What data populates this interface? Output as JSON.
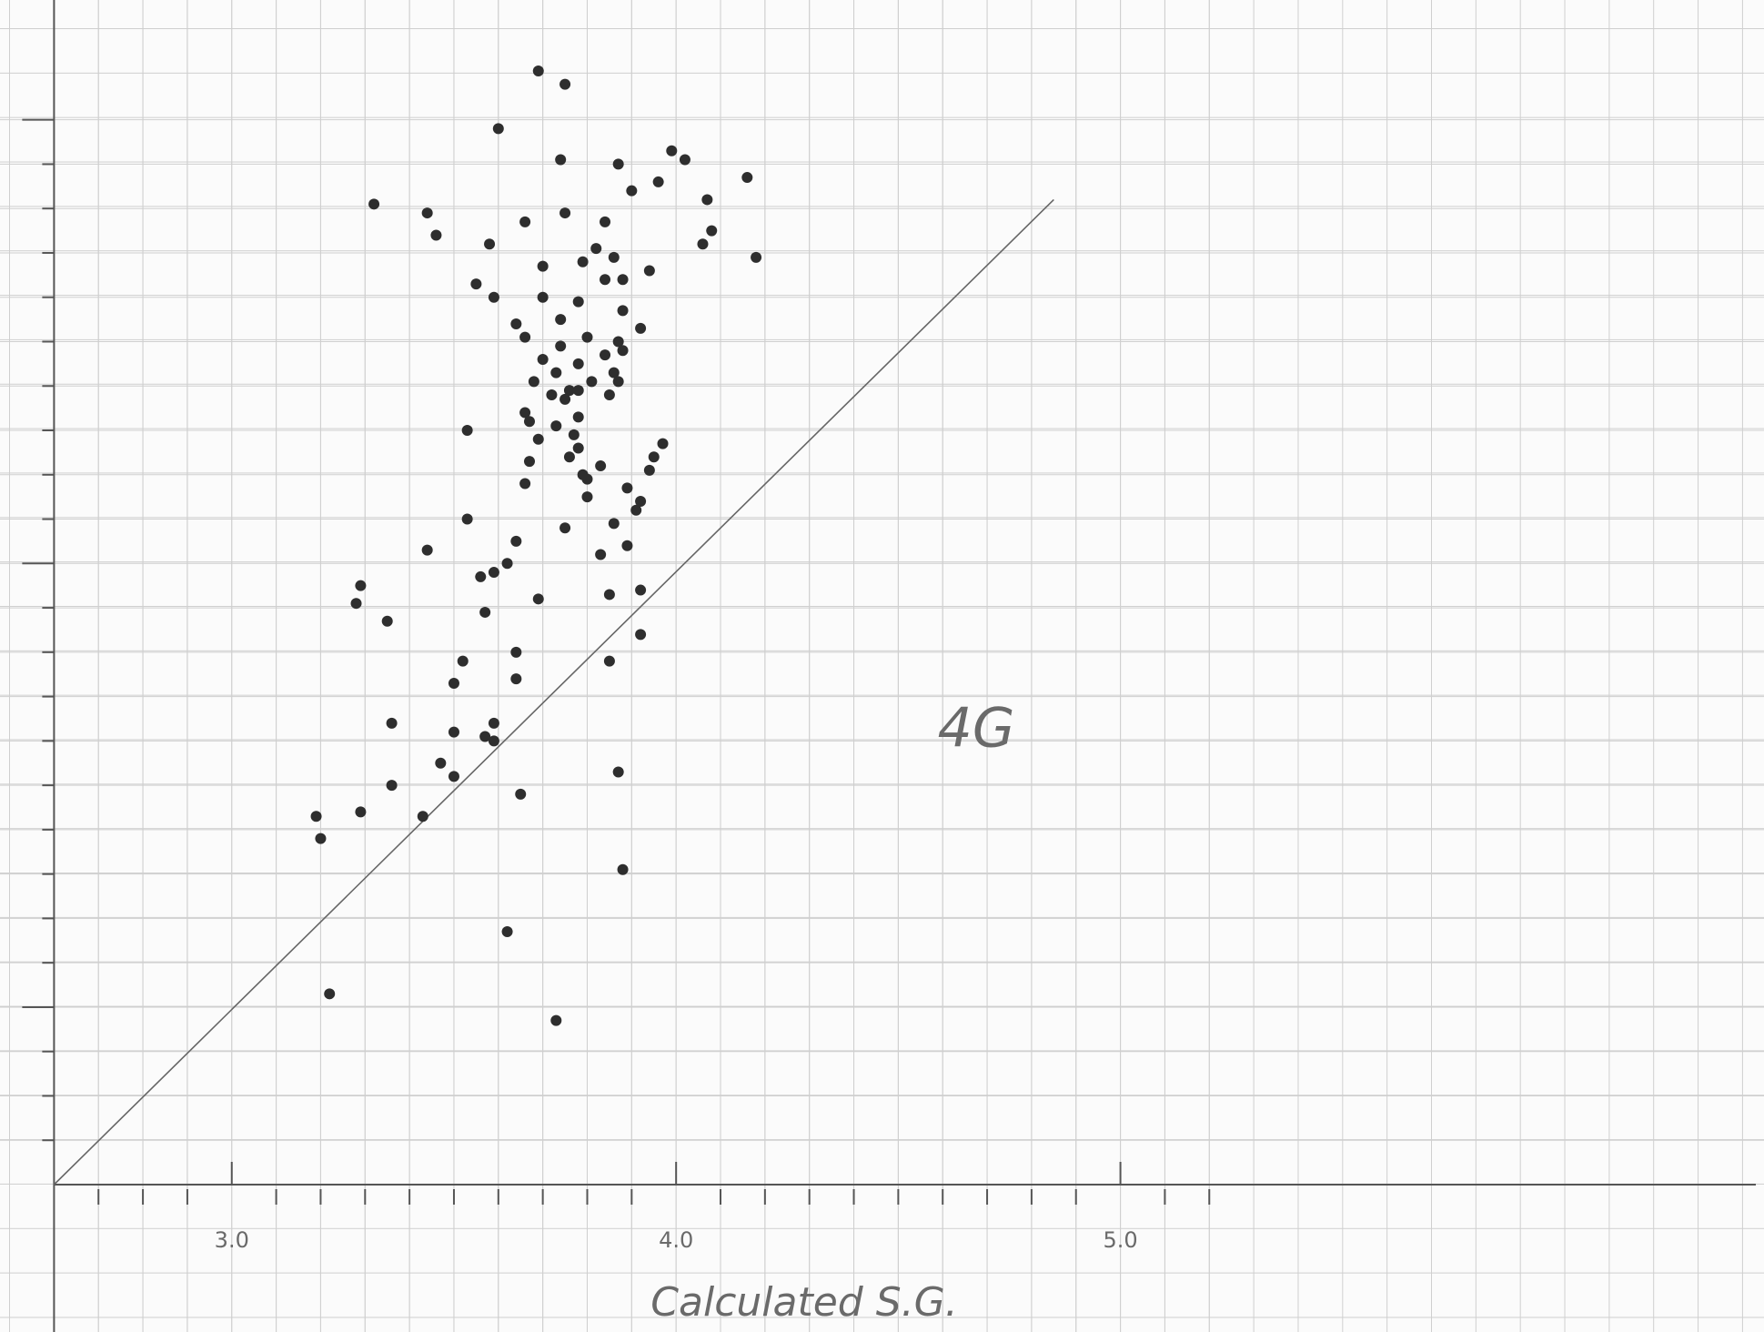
{
  "chart_data": {
    "type": "scatter",
    "x_label": "Calculated S.G.",
    "annotation": "4G",
    "x": [
      3.69,
      3.75,
      3.6,
      3.74,
      3.99,
      4.02,
      3.87,
      3.96,
      4.16,
      3.9,
      3.32,
      3.44,
      4.07,
      3.75,
      3.66,
      3.84,
      3.46,
      4.08,
      4.06,
      3.58,
      4.18,
      3.82,
      3.86,
      3.7,
      3.79,
      3.94,
      3.55,
      3.84,
      3.88,
      3.59,
      3.7,
      3.78,
      3.88,
      3.64,
      3.92,
      3.74,
      3.66,
      3.8,
      3.87,
      3.74,
      3.84,
      3.7,
      3.88,
      3.78,
      3.73,
      3.86,
      3.68,
      3.81,
      3.76,
      3.87,
      3.72,
      3.78,
      3.85,
      3.75,
      3.53,
      3.66,
      3.67,
      3.78,
      3.69,
      3.73,
      3.77,
      3.97,
      3.76,
      3.78,
      3.95,
      3.83,
      3.94,
      3.79,
      3.67,
      3.8,
      3.66,
      3.89,
      3.8,
      3.92,
      3.91,
      3.53,
      3.86,
      3.75,
      3.64,
      3.89,
      3.44,
      3.83,
      3.62,
      3.59,
      3.56,
      3.29,
      3.28,
      3.69,
      3.85,
      3.92,
      3.35,
      3.57,
      3.64,
      3.92,
      3.85,
      3.52,
      3.5,
      3.64,
      3.36,
      3.59,
      3.5,
      3.57,
      3.59,
      3.87,
      3.47,
      3.5,
      3.36,
      3.65,
      3.19,
      3.29,
      3.43,
      3.2,
      3.88,
      3.62,
      3.22,
      3.73
    ],
    "values": [
      5.11,
      5.08,
      4.98,
      4.91,
      4.93,
      4.91,
      4.9,
      4.86,
      4.87,
      4.84,
      4.81,
      4.79,
      4.82,
      4.79,
      4.77,
      4.77,
      4.74,
      4.75,
      4.72,
      4.72,
      4.69,
      4.71,
      4.69,
      4.67,
      4.68,
      4.66,
      4.63,
      4.64,
      4.64,
      4.6,
      4.6,
      4.59,
      4.57,
      4.54,
      4.53,
      4.55,
      4.51,
      4.51,
      4.5,
      4.49,
      4.47,
      4.46,
      4.48,
      4.45,
      4.43,
      4.43,
      4.41,
      4.41,
      4.39,
      4.41,
      4.38,
      4.39,
      4.38,
      4.37,
      4.3,
      4.34,
      4.32,
      4.33,
      4.28,
      4.31,
      4.29,
      4.27,
      4.24,
      4.26,
      4.24,
      4.22,
      4.21,
      4.2,
      4.23,
      4.19,
      4.18,
      4.17,
      4.15,
      4.14,
      4.12,
      4.1,
      4.09,
      4.08,
      4.05,
      4.04,
      4.03,
      4.02,
      4.0,
      3.98,
      3.97,
      3.95,
      3.91,
      3.92,
      3.93,
      3.94,
      3.87,
      3.89,
      3.8,
      3.84,
      3.78,
      3.78,
      3.73,
      3.74,
      3.64,
      3.64,
      3.62,
      3.61,
      3.6,
      3.53,
      3.55,
      3.52,
      3.5,
      3.48,
      3.43,
      3.44,
      3.43,
      3.38,
      3.31,
      3.17,
      3.03,
      2.97
    ],
    "color": "#2e2e2e",
    "reference_line": {
      "x": [
        2.6,
        4.85
      ],
      "y": [
        2.6,
        4.82
      ]
    },
    "xlim": [
      2.6,
      6.43
    ],
    "ylim": [
      2.6,
      5.27
    ],
    "xticks": [
      {
        "value": 3,
        "label": "3.0"
      },
      {
        "value": 4,
        "label": "4.0"
      },
      {
        "value": 5,
        "label": "5.0"
      }
    ],
    "xminorticks": [
      2.7,
      2.8,
      2.9,
      3.1,
      3.2,
      3.3,
      3.4,
      3.5,
      3.6,
      3.7,
      3.8,
      3.9,
      4.1,
      4.2,
      4.3,
      4.4,
      4.5,
      4.6,
      4.7,
      4.8,
      4.9,
      5.1,
      5.2
    ],
    "yticks": [
      3,
      4,
      5
    ],
    "yminorticks": [
      2.7,
      2.8,
      2.9,
      3.1,
      3.2,
      3.3,
      3.4,
      3.5,
      3.6,
      3.7,
      3.8,
      3.9,
      4.1,
      4.2,
      4.3,
      4.4,
      4.5,
      4.6,
      4.7,
      4.8,
      4.9
    ],
    "grid": true
  }
}
